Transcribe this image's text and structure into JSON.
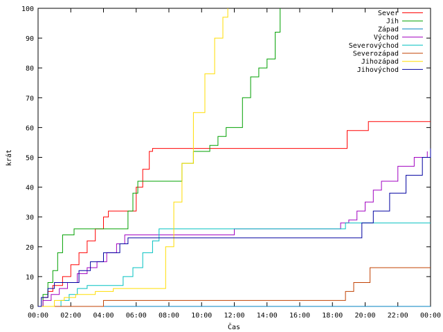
{
  "chart_data": {
    "type": "line",
    "xlabel": "Čas",
    "ylabel": "krát",
    "xlim": [
      0,
      24
    ],
    "ylim": [
      0,
      100
    ],
    "x_ticks": [
      {
        "value": 0,
        "label": "00:00"
      },
      {
        "value": 2,
        "label": "02:00"
      },
      {
        "value": 4,
        "label": "04:00"
      },
      {
        "value": 6,
        "label": "06:00"
      },
      {
        "value": 8,
        "label": "08:00"
      },
      {
        "value": 10,
        "label": "10:00"
      },
      {
        "value": 12,
        "label": "12:00"
      },
      {
        "value": 14,
        "label": "14:00"
      },
      {
        "value": 16,
        "label": "16:00"
      },
      {
        "value": 18,
        "label": "18:00"
      },
      {
        "value": 20,
        "label": "20:00"
      },
      {
        "value": 22,
        "label": "22:00"
      },
      {
        "value": 24,
        "label": "00:00"
      }
    ],
    "y_ticks": [
      0,
      10,
      20,
      30,
      40,
      50,
      60,
      70,
      80,
      90,
      100
    ],
    "grid": false,
    "legend_position": "top-right",
    "series": [
      {
        "name": "Sever",
        "color": "#ff0000",
        "x": [
          0,
          0.3,
          0.6,
          0.9,
          1.5,
          2.0,
          2.5,
          3.0,
          3.5,
          4.0,
          4.3,
          5.0,
          5.6,
          6.0,
          6.4,
          6.8,
          7.0,
          18.5,
          18.9,
          20.2,
          24
        ],
        "y": [
          0,
          3,
          5,
          7,
          10,
          14,
          18,
          22,
          26,
          30,
          32,
          32,
          32,
          40,
          46,
          52,
          53,
          53,
          59,
          62,
          62
        ]
      },
      {
        "name": "Jih",
        "color": "#00a000",
        "x": [
          0,
          0.3,
          0.6,
          0.9,
          1.2,
          1.5,
          2.2,
          5.2,
          5.5,
          5.8,
          6.1,
          6.4,
          8.2,
          8.8,
          9.5,
          10.5,
          11.0,
          11.5,
          12.5,
          13.0,
          13.5,
          14.0,
          14.5,
          14.8
        ],
        "y": [
          0,
          4,
          8,
          12,
          18,
          24,
          26,
          26,
          32,
          38,
          42,
          42,
          42,
          48,
          52,
          54,
          57,
          60,
          70,
          77,
          80,
          83,
          92,
          100
        ]
      },
      {
        "name": "Západ",
        "color": "#0080c0",
        "x": [
          0,
          0.1,
          24
        ],
        "y": [
          0,
          0,
          0
        ]
      },
      {
        "name": "Východ",
        "color": "#a000c0",
        "x": [
          0,
          0.3,
          0.8,
          1.3,
          1.8,
          2.4,
          3.0,
          3.6,
          4.2,
          4.8,
          5.3,
          12.0,
          18.5,
          19.0,
          19.5,
          20.0,
          20.5,
          21.0,
          22.0,
          23.0,
          23.8
        ],
        "y": [
          0,
          2,
          4,
          6,
          8,
          11,
          13,
          15,
          18,
          21,
          24,
          26,
          28,
          29,
          32,
          35,
          39,
          42,
          47,
          50,
          52
        ]
      },
      {
        "name": "Severovýchod",
        "color": "#00c0c0",
        "x": [
          0,
          1.4,
          1.9,
          2.4,
          3.0,
          4.6,
          5.2,
          5.8,
          6.4,
          7.0,
          7.4,
          18.8,
          24
        ],
        "y": [
          0,
          2,
          4,
          6,
          7,
          7,
          10,
          13,
          18,
          22,
          26,
          28,
          28
        ]
      },
      {
        "name": "Severozápad",
        "color": "#c04000",
        "x": [
          0,
          4.0,
          18.3,
          18.8,
          19.3,
          20.3,
          24
        ],
        "y": [
          0,
          2,
          2,
          5,
          8,
          13,
          13
        ]
      },
      {
        "name": "Jihozápad",
        "color": "#ffdd00",
        "x": [
          0,
          1.0,
          1.6,
          2.3,
          3.5,
          4.6,
          7.3,
          7.8,
          8.3,
          8.8,
          9.5,
          10.2,
          10.8,
          11.3,
          11.6
        ],
        "y": [
          0,
          2,
          3,
          4,
          5,
          6,
          6,
          20,
          35,
          48,
          65,
          78,
          90,
          97,
          100
        ]
      },
      {
        "name": "Jihovýchod",
        "color": "#0000a0",
        "x": [
          0,
          0.2,
          0.6,
          1.0,
          1.8,
          2.5,
          3.2,
          4.0,
          5.0,
          5.5,
          19.0,
          19.8,
          20.5,
          21.5,
          22.5,
          23.5,
          24
        ],
        "y": [
          0,
          3,
          6,
          8,
          8,
          12,
          15,
          18,
          21,
          23,
          23,
          28,
          32,
          38,
          44,
          50,
          53
        ]
      }
    ]
  }
}
